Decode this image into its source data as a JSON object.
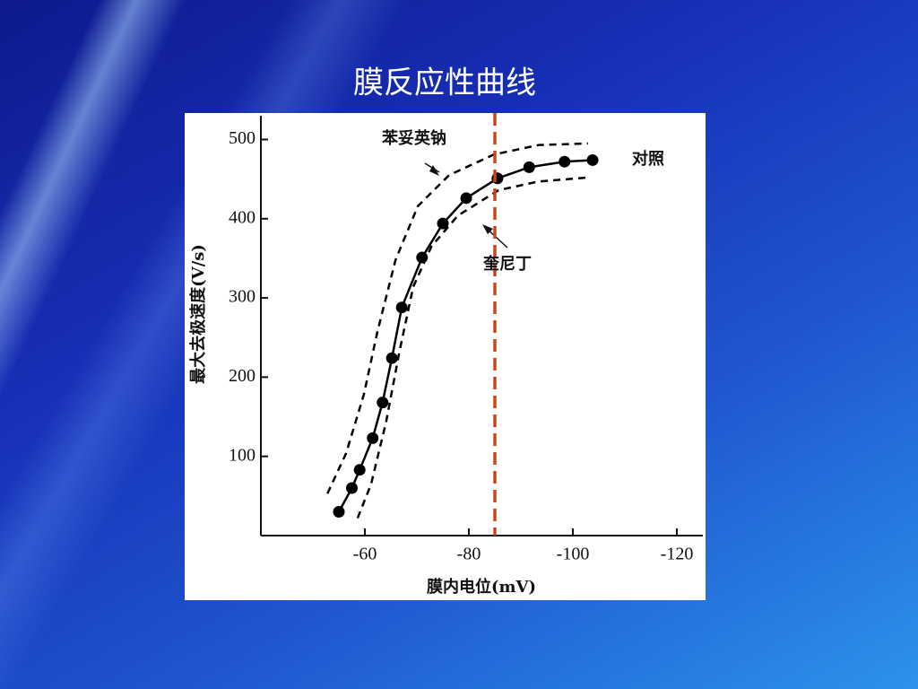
{
  "chart_data": {
    "type": "line",
    "title": "膜反应性曲线",
    "xlabel": "膜内电位(mV)",
    "ylabel": "最大去极速度(V/s)",
    "xlim": [
      -40,
      -125
    ],
    "ylim": [
      0,
      530
    ],
    "xticks": [
      -60,
      -80,
      -100,
      -120
    ],
    "yticks": [
      100,
      200,
      300,
      400,
      500
    ],
    "vline": {
      "x": -85,
      "color": "#c8461e"
    },
    "series": [
      {
        "name": "对照",
        "color": "#000000",
        "style": "solid",
        "markers": true,
        "x": [
          -55,
          -57.5,
          -59,
          -61.5,
          -63.4,
          -65.2,
          -67.1,
          -71,
          -75,
          -79.5,
          -85.5,
          -91.6,
          -98.4,
          -103.8
        ],
        "values": [
          30,
          60,
          83,
          123,
          168,
          224,
          288,
          351,
          394,
          426,
          451,
          465,
          472,
          474
        ]
      },
      {
        "name": "苯妥英钠",
        "color": "#000000",
        "style": "dashed",
        "markers": false,
        "x": [
          -52.8,
          -56.4,
          -59.8,
          -62.4,
          -65.9,
          -70.2,
          -76.2,
          -84.8,
          -93.4,
          -102.9
        ],
        "values": [
          53,
          104,
          178,
          257,
          348,
          416,
          455,
          481,
          493,
          495
        ]
      },
      {
        "name": "奎尼丁",
        "color": "#000000",
        "style": "dashed",
        "markers": false,
        "x": [
          -58.6,
          -61.2,
          -64.1,
          -66.7,
          -69.3,
          -72.8,
          -77.9,
          -85.7,
          -93.4,
          -102.9
        ],
        "values": [
          22,
          65,
          144,
          234,
          314,
          365,
          404,
          436,
          447,
          452
        ]
      }
    ]
  }
}
